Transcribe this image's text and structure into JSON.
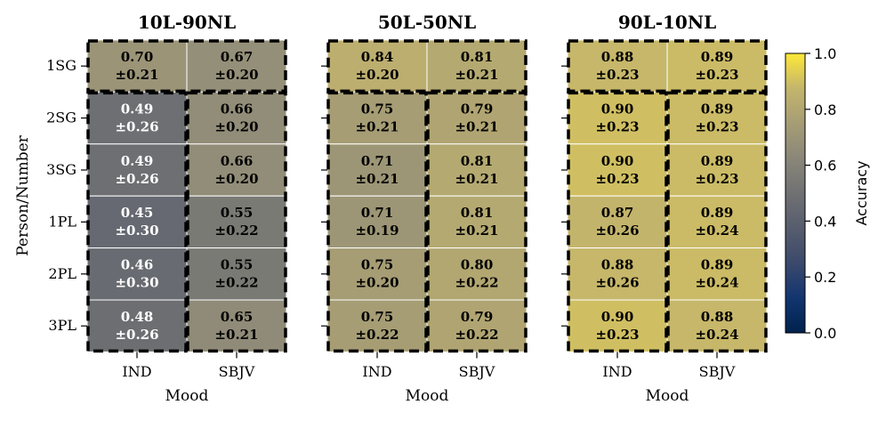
{
  "chart_data": {
    "type": "heatmap",
    "ylabel": "Person/Number",
    "rows": [
      "1SG",
      "2SG",
      "3SG",
      "1PL",
      "2PL",
      "3PL"
    ],
    "columns": [
      "IND",
      "SBJV"
    ],
    "colormap": "cividis",
    "colorbar": {
      "label": "Accuracy",
      "range": [
        0.0,
        1.0
      ],
      "ticks": [
        "0.0",
        "0.2",
        "0.4",
        "0.6",
        "0.8",
        "1.0"
      ]
    },
    "panels": [
      {
        "title": "10L-90NL",
        "xlabel": "Mood",
        "mean": [
          [
            0.7,
            0.67
          ],
          [
            0.49,
            0.66
          ],
          [
            0.49,
            0.66
          ],
          [
            0.45,
            0.55
          ],
          [
            0.46,
            0.55
          ],
          [
            0.48,
            0.65
          ]
        ],
        "std": [
          [
            0.21,
            0.2
          ],
          [
            0.26,
            0.2
          ],
          [
            0.26,
            0.2
          ],
          [
            0.3,
            0.22
          ],
          [
            0.3,
            0.22
          ],
          [
            0.26,
            0.21
          ]
        ],
        "mean_labels": [
          [
            "0.70",
            "0.67"
          ],
          [
            "0.49",
            "0.66"
          ],
          [
            "0.49",
            "0.66"
          ],
          [
            "0.45",
            "0.55"
          ],
          [
            "0.46",
            "0.55"
          ],
          [
            "0.48",
            "0.65"
          ]
        ],
        "std_labels": [
          [
            "±0.21",
            "±0.20"
          ],
          [
            "±0.26",
            "±0.20"
          ],
          [
            "±0.26",
            "±0.20"
          ],
          [
            "±0.30",
            "±0.22"
          ],
          [
            "±0.30",
            "±0.22"
          ],
          [
            "±0.26",
            "±0.21"
          ]
        ]
      },
      {
        "title": "50L-50NL",
        "xlabel": "Mood",
        "mean": [
          [
            0.84,
            0.81
          ],
          [
            0.75,
            0.79
          ],
          [
            0.71,
            0.81
          ],
          [
            0.71,
            0.81
          ],
          [
            0.75,
            0.8
          ],
          [
            0.75,
            0.79
          ]
        ],
        "std": [
          [
            0.2,
            0.21
          ],
          [
            0.21,
            0.21
          ],
          [
            0.21,
            0.21
          ],
          [
            0.19,
            0.21
          ],
          [
            0.2,
            0.22
          ],
          [
            0.22,
            0.22
          ]
        ],
        "mean_labels": [
          [
            "0.84",
            "0.81"
          ],
          [
            "0.75",
            "0.79"
          ],
          [
            "0.71",
            "0.81"
          ],
          [
            "0.71",
            "0.81"
          ],
          [
            "0.75",
            "0.80"
          ],
          [
            "0.75",
            "0.79"
          ]
        ],
        "std_labels": [
          [
            "±0.20",
            "±0.21"
          ],
          [
            "±0.21",
            "±0.21"
          ],
          [
            "±0.21",
            "±0.21"
          ],
          [
            "±0.19",
            "±0.21"
          ],
          [
            "±0.20",
            "±0.22"
          ],
          [
            "±0.22",
            "±0.22"
          ]
        ]
      },
      {
        "title": "90L-10NL",
        "xlabel": "Mood",
        "mean": [
          [
            0.88,
            0.89
          ],
          [
            0.9,
            0.89
          ],
          [
            0.9,
            0.89
          ],
          [
            0.87,
            0.89
          ],
          [
            0.88,
            0.89
          ],
          [
            0.9,
            0.88
          ]
        ],
        "std": [
          [
            0.23,
            0.23
          ],
          [
            0.23,
            0.23
          ],
          [
            0.23,
            0.23
          ],
          [
            0.26,
            0.24
          ],
          [
            0.26,
            0.24
          ],
          [
            0.23,
            0.24
          ]
        ],
        "mean_labels": [
          [
            "0.88",
            "0.89"
          ],
          [
            "0.90",
            "0.89"
          ],
          [
            "0.90",
            "0.89"
          ],
          [
            "0.87",
            "0.89"
          ],
          [
            "0.88",
            "0.89"
          ],
          [
            "0.90",
            "0.88"
          ]
        ],
        "std_labels": [
          [
            "±0.23",
            "±0.23"
          ],
          [
            "±0.23",
            "±0.23"
          ],
          [
            "±0.23",
            "±0.23"
          ],
          [
            "±0.26",
            "±0.24"
          ],
          [
            "±0.26",
            "±0.24"
          ],
          [
            "±0.23",
            "±0.24"
          ]
        ]
      }
    ]
  }
}
